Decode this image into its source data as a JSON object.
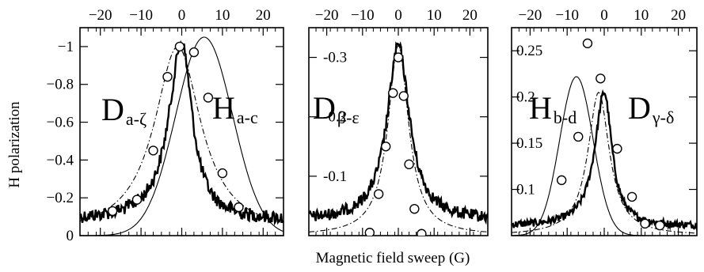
{
  "figure": {
    "ylabel": "H polarization",
    "xlabel": "Magnetic field sweep (G)"
  },
  "chart_data": [
    {
      "type": "line",
      "panel": "left",
      "xlim": [
        -25,
        25
      ],
      "ylim": [
        0,
        -1.1
      ],
      "y_inverted": true,
      "x_ticks": [
        -20,
        -10,
        0,
        10,
        20
      ],
      "y_ticks": [
        0,
        -0.2,
        -0.4,
        -0.6,
        -0.8,
        -1
      ],
      "x_tick_labels": [
        "−20",
        "−10",
        "0",
        "10",
        "20"
      ],
      "y_tick_labels": [
        "0",
        "−0.2",
        "−0.4",
        "−0.6",
        "−0.8",
        "−1"
      ],
      "annotations": [
        {
          "main": "D",
          "sub": "a-ζ"
        },
        {
          "main": "H",
          "sub": "a-c"
        }
      ],
      "series": [
        {
          "style": "thick-noisy",
          "shape": "lorentz-tail",
          "center": 0,
          "amp": -1.02,
          "width": 3.5,
          "baseline": -0.08,
          "noise": 0.035
        },
        {
          "style": "thin",
          "shape": "gauss",
          "center": 5.5,
          "amp": -1.05,
          "width": 7.0,
          "baseline": 0
        },
        {
          "style": "dash-dot",
          "shape": "lorentz",
          "center": -1,
          "amp": -1.0,
          "width": 7.0,
          "baseline": 0
        }
      ],
      "points": [
        {
          "x": -17,
          "y": -0.13
        },
        {
          "x": -11,
          "y": -0.19
        },
        {
          "x": -7,
          "y": -0.45
        },
        {
          "x": -3.5,
          "y": -0.84
        },
        {
          "x": -0.5,
          "y": -1.0
        },
        {
          "x": 3,
          "y": -0.97
        },
        {
          "x": 6.5,
          "y": -0.73
        },
        {
          "x": 10,
          "y": -0.33
        },
        {
          "x": 14,
          "y": -0.15
        }
      ]
    },
    {
      "type": "line",
      "panel": "middle",
      "xlim": [
        -25,
        25
      ],
      "ylim": [
        0,
        -0.35
      ],
      "y_inverted": true,
      "x_ticks": [
        -20,
        -10,
        0,
        10,
        20
      ],
      "y_ticks": [
        -0.1,
        -0.2,
        -0.3
      ],
      "x_tick_labels": [
        "−20",
        "−10",
        "0",
        "10",
        "20"
      ],
      "y_tick_labels": [
        "-0.1",
        "-0.2",
        "-0.3"
      ],
      "annotations": [
        {
          "main": "D",
          "sub": "β-ε"
        }
      ],
      "series": [
        {
          "style": "thick-noisy",
          "shape": "lorentz",
          "center": 0,
          "amp": -0.32,
          "width": 3.8,
          "baseline": -0.025,
          "noise": 0.01
        },
        {
          "style": "dash-dot",
          "shape": "lorentz",
          "center": 0,
          "amp": -0.32,
          "width": 3.5,
          "baseline": 0
        }
      ],
      "points": [
        {
          "x": -8,
          "y": -0.005
        },
        {
          "x": -5.5,
          "y": -0.07
        },
        {
          "x": -3.5,
          "y": -0.15
        },
        {
          "x": -1.5,
          "y": -0.24
        },
        {
          "x": 0,
          "y": -0.3
        },
        {
          "x": 1.5,
          "y": -0.235
        },
        {
          "x": 3,
          "y": -0.12
        },
        {
          "x": 4.5,
          "y": -0.045
        },
        {
          "x": 6.5,
          "y": -0.003
        }
      ]
    },
    {
      "type": "line",
      "panel": "right",
      "xlim": [
        -25,
        25
      ],
      "ylim": [
        0.05,
        0.275
      ],
      "y_inverted": false,
      "x_ticks": [
        -20,
        -10,
        0,
        10,
        20
      ],
      "y_ticks": [
        0.1,
        0.15,
        0.2,
        0.25
      ],
      "x_tick_labels": [
        "−20",
        "−10",
        "0",
        "10",
        "20"
      ],
      "y_tick_labels": [
        "0.1",
        "0.15",
        "0.2",
        "0.25"
      ],
      "annotations": [
        {
          "main": "H",
          "sub": "b-d"
        },
        {
          "main": "D",
          "sub": "γ-δ"
        }
      ],
      "series": [
        {
          "style": "thick-noisy",
          "shape": "lorentz-tail",
          "center": 0,
          "amp": 0.205,
          "width": 2.8,
          "baseline": 0.06,
          "noise": 0.004
        },
        {
          "style": "thin",
          "shape": "gauss",
          "center": -7.5,
          "amp": 0.222,
          "width": 4.5,
          "baseline": 0.05
        },
        {
          "style": "dash-dot",
          "shape": "lorentz",
          "center": -1.5,
          "amp": 0.205,
          "width": 3.5,
          "baseline": 0.05
        }
      ],
      "points": [
        {
          "x": -11.5,
          "y": 0.11
        },
        {
          "x": -7,
          "y": 0.157
        },
        {
          "x": -4.5,
          "y": 0.258
        },
        {
          "x": -1,
          "y": 0.22
        },
        {
          "x": 3.5,
          "y": 0.144
        },
        {
          "x": 7.5,
          "y": 0.092
        },
        {
          "x": 11,
          "y": 0.063
        },
        {
          "x": 15,
          "y": 0.061
        }
      ]
    }
  ]
}
